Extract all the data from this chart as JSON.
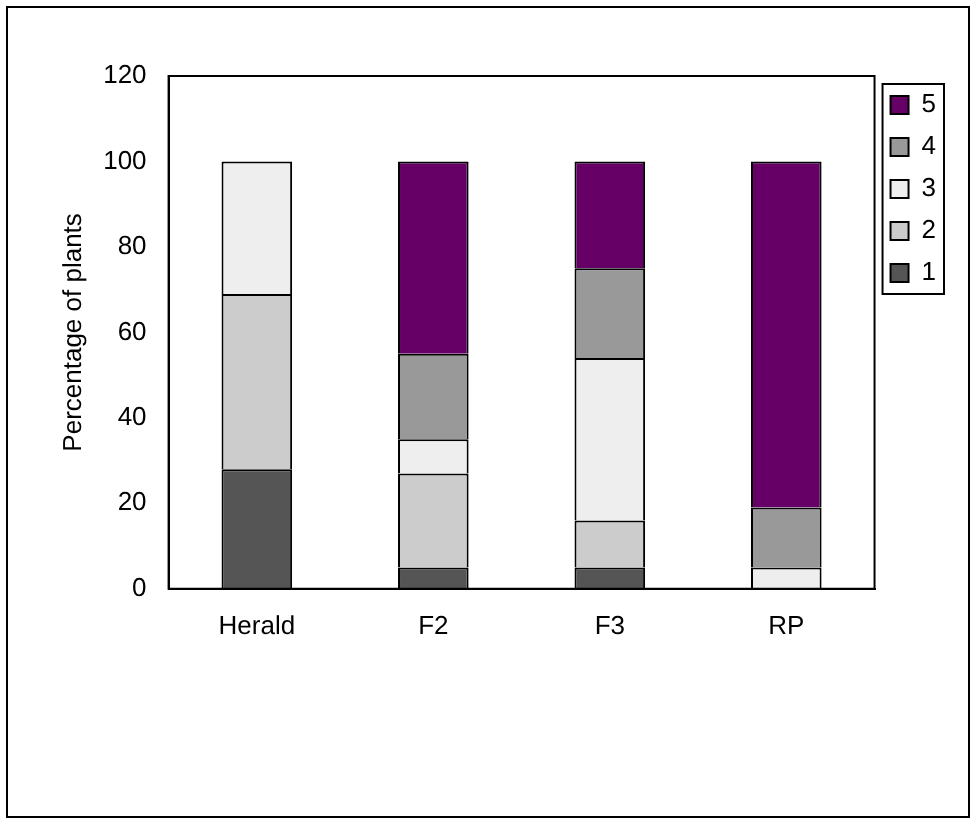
{
  "chart_data": {
    "type": "bar",
    "stacked": true,
    "ylabel": "Percentage of plants",
    "categories": [
      "Herald",
      "F2",
      "F3",
      "RP"
    ],
    "series": [
      {
        "name": "1",
        "color": "#555555",
        "values": [
          28,
          5,
          5,
          0
        ]
      },
      {
        "name": "2",
        "color": "#cccccc",
        "values": [
          41,
          22,
          11,
          0
        ]
      },
      {
        "name": "3",
        "color": "#eeeeee",
        "values": [
          31,
          8,
          38,
          5
        ]
      },
      {
        "name": "4",
        "color": "#999999",
        "values": [
          0,
          20,
          21,
          14
        ]
      },
      {
        "name": "5",
        "color": "#660066",
        "values": [
          0,
          45,
          25,
          81
        ]
      }
    ],
    "ylim": [
      0,
      120
    ],
    "yticks": [
      0,
      20,
      40,
      60,
      80,
      100,
      120
    ],
    "grid": false,
    "legend": "right"
  }
}
